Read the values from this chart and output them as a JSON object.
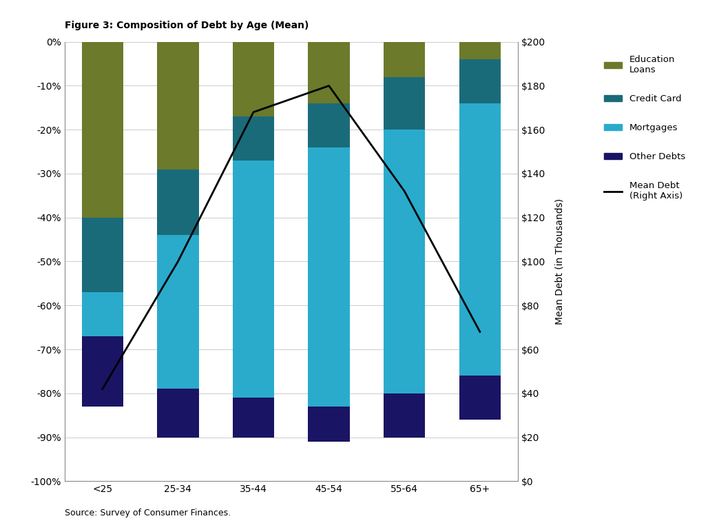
{
  "categories": [
    "<25",
    "25-34",
    "35-44",
    "45-54",
    "55-64",
    "65+"
  ],
  "education_loans": [
    40,
    29,
    17,
    14,
    8,
    4
  ],
  "credit_card": [
    17,
    15,
    10,
    10,
    12,
    10
  ],
  "mortgages": [
    10,
    35,
    54,
    59,
    60,
    62
  ],
  "other_debts": [
    16,
    11,
    9,
    8,
    10,
    10
  ],
  "mean_debt": [
    42,
    100,
    168,
    180,
    132,
    68
  ],
  "colors": {
    "education_loans": "#6b7a2b",
    "credit_card": "#1a6b7a",
    "mortgages": "#2aabcc",
    "other_debts": "#1a1464"
  },
  "title": "Figure 3: Composition of Debt by Age (Mean)",
  "source": "Source: Survey of Consumer Finances.",
  "ylabel_right": "Mean Debt (in Thousands)",
  "ylim_left": [
    -100,
    0
  ],
  "ylim_right": [
    0,
    200
  ],
  "yticks_left": [
    0,
    -10,
    -20,
    -30,
    -40,
    -50,
    -60,
    -70,
    -80,
    -90,
    -100
  ],
  "yticks_right": [
    0,
    20,
    40,
    60,
    80,
    100,
    120,
    140,
    160,
    180,
    200
  ],
  "background_color": "#ffffff",
  "line_color": "#000000",
  "line_width": 2.0,
  "bar_width": 0.55
}
